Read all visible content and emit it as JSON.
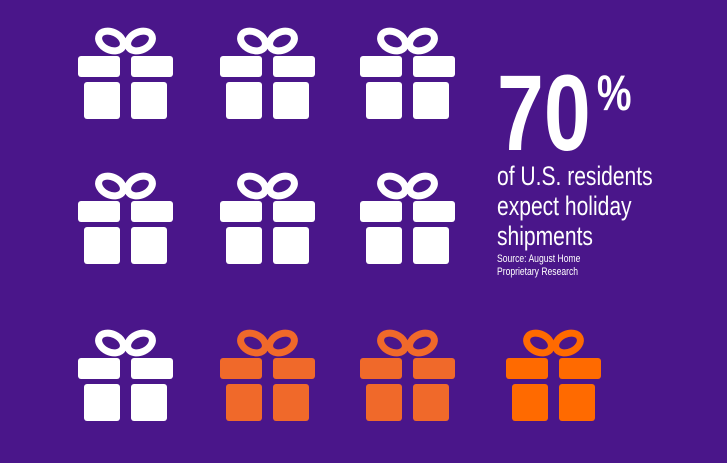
{
  "stat": {
    "value": "70",
    "unit": "%"
  },
  "description": [
    "of U.S. residents",
    "expect holiday",
    "shipments"
  ],
  "source": [
    "Source: August Home",
    "Proprietary Research"
  ]
}
